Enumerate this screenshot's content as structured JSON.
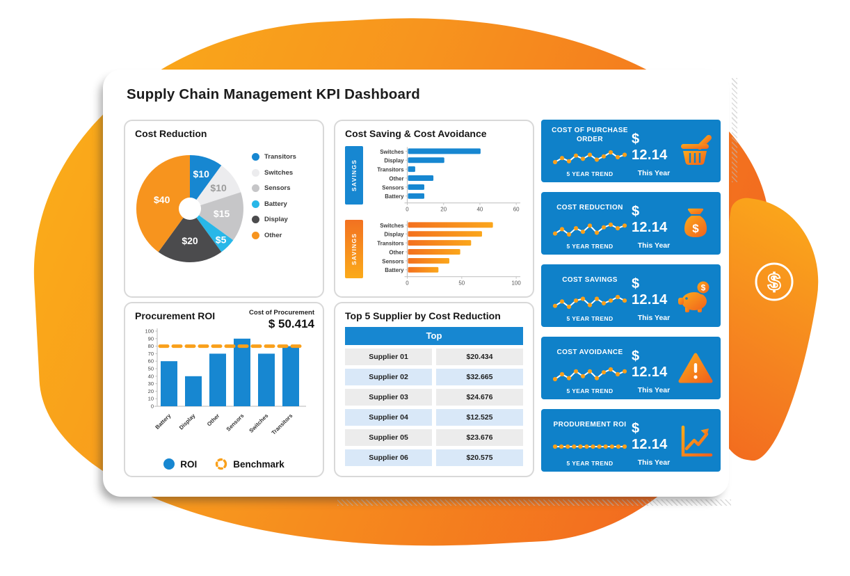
{
  "title": "Supply Chain Management KPI Dashboard",
  "accent_colors": {
    "blue": "#1787d1",
    "card_blue": "#0f81c9",
    "orange": "#f7941e",
    "orange_dark": "#f2691f"
  },
  "panels": {
    "hbars": {
      "title": "Cost Saving & Cost Avoidance"
    },
    "roi": {
      "title": "Procurement ROI",
      "cost_label": "Cost of Procurement",
      "cost_value": "$ 50.414",
      "legend": [
        {
          "label": "ROI"
        },
        {
          "label": "Benchmark"
        }
      ]
    }
  },
  "kpi_cards": [
    {
      "title": "COST OF PURCHASE ORDER",
      "value": "$ 12.14",
      "trend_label": "5 YEAR TREND",
      "period_label": "This Year",
      "icon": "shopping-basket-icon",
      "spark": [
        4,
        5,
        4.2,
        5.6,
        4.8,
        5.8,
        4.6,
        5.4,
        6.4,
        5.2,
        5.8
      ]
    },
    {
      "title": "COST REDUCTION",
      "value": "$ 12.14",
      "trend_label": "5 YEAR TREND",
      "period_label": "This Year",
      "icon": "money-bag-icon",
      "spark": [
        4.2,
        5.2,
        4,
        5.4,
        4.6,
        6,
        4.4,
        5.6,
        6.2,
        5.4,
        6
      ]
    },
    {
      "title": "COST SAVINGS",
      "value": "$ 12.14",
      "trend_label": "5 YEAR TREND",
      "period_label": "This Year",
      "icon": "piggy-bank-icon",
      "spark": [
        4.4,
        5.4,
        4.2,
        5.6,
        6,
        4.6,
        6,
        5,
        5.6,
        6.4,
        5.6
      ]
    },
    {
      "title": "COST AVOIDANCE",
      "value": "$ 12.14",
      "trend_label": "5 YEAR TREND",
      "period_label": "This Year",
      "icon": "warning-triangle-icon",
      "spark": [
        4.2,
        5.2,
        4.4,
        5.8,
        4.8,
        5.8,
        4.4,
        5.6,
        6.2,
        5.2,
        5.8
      ]
    },
    {
      "title": "PRODUREMENT ROI",
      "value": "$ 12.14",
      "trend_label": "5 YEAR TREND",
      "period_label": "This Year",
      "icon": "trend-chart-icon",
      "spark": [
        5,
        5,
        5,
        5,
        5,
        5,
        5,
        5,
        5,
        5,
        5,
        5
      ]
    }
  ],
  "chart_data": [
    {
      "type": "pie",
      "title": "Cost Reduction",
      "labels": [
        "Transitors",
        "Switches",
        "Sensors",
        "Battery",
        "Display",
        "Other"
      ],
      "values": [
        10,
        10,
        15,
        5,
        20,
        40
      ],
      "data_labels": [
        "$10",
        "$10",
        "$15",
        "$5",
        "$20",
        "$40"
      ],
      "colors": [
        "#1787d1",
        "#ececee",
        "#c6c6c8",
        "#28b7e8",
        "#4b4b4d",
        "#f7941e"
      ],
      "label_colors": [
        "#ffffff",
        "#9b9b9b",
        "#ffffff",
        "#ffffff",
        "#ffffff",
        "#ffffff"
      ],
      "label_r": [
        0.68,
        0.66,
        0.6,
        0.82,
        0.6,
        0.55
      ],
      "legend_position": "right",
      "donut_hole": true
    },
    {
      "type": "bar",
      "orientation": "horizontal",
      "side_label": "SAVINGS",
      "categories": [
        "Switches",
        "Display",
        "Transitors",
        "Other",
        "Sensors",
        "Battery"
      ],
      "values": [
        40,
        20,
        4,
        14,
        9,
        9
      ],
      "xlim": [
        0,
        60
      ],
      "xticks": [
        0,
        20,
        40,
        60
      ],
      "color": "#1787d1"
    },
    {
      "type": "bar",
      "orientation": "horizontal",
      "side_label": "SAVINGS",
      "categories": [
        "Switches",
        "Display",
        "Transitors",
        "Other",
        "Sensors",
        "Battery"
      ],
      "values": [
        78,
        68,
        58,
        48,
        38,
        28
      ],
      "xlim": [
        0,
        100
      ],
      "xticks": [
        0,
        50,
        100
      ],
      "color": "#f7941e"
    },
    {
      "type": "bar",
      "orientation": "vertical",
      "title": "Procurement ROI",
      "categories": [
        "Battery",
        "Display",
        "Other",
        "Sensors",
        "Switches",
        "Transitors"
      ],
      "values": [
        60,
        40,
        70,
        90,
        70,
        80
      ],
      "benchmark": 80,
      "ylim": [
        0,
        100
      ],
      "yticks": [
        0,
        10,
        20,
        30,
        40,
        50,
        60,
        70,
        80,
        90,
        100
      ],
      "color": "#1787d1",
      "benchmark_color": "#f9a01b"
    },
    {
      "type": "table",
      "title": "Top 5 Supplier by Cost Reduction",
      "header": "Top",
      "rows": [
        [
          "Supplier 01",
          "$20.434"
        ],
        [
          "Supplier 02",
          "$32.665"
        ],
        [
          "Supplier 03",
          "$24.676"
        ],
        [
          "Supplier 04",
          "$12.525"
        ],
        [
          "Supplier 05",
          "$23.676"
        ],
        [
          "Supplier 06",
          "$20.575"
        ]
      ]
    }
  ]
}
